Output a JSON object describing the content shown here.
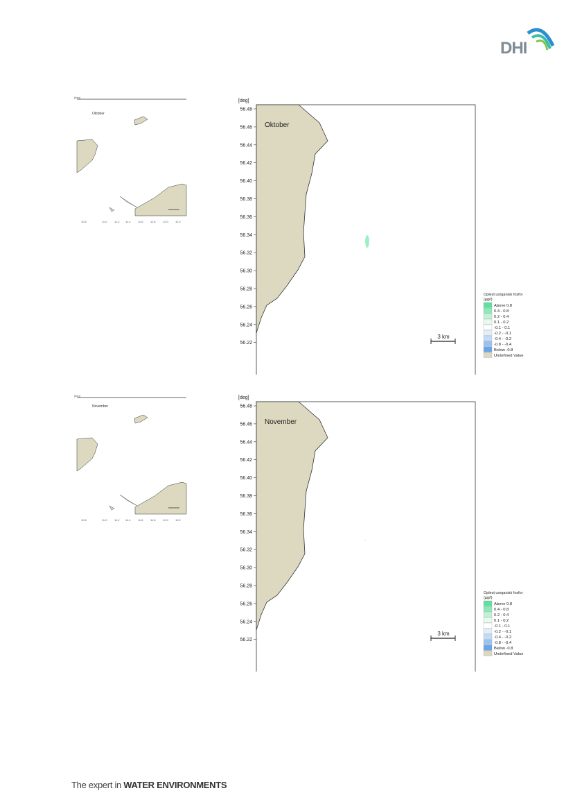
{
  "logo": {
    "text": "DHI"
  },
  "footer": {
    "prefix": "The expert in ",
    "emphasis": "WATER ENVIRONMENTS"
  },
  "axes": {
    "x_unit": "[deg]",
    "y_unit": "[deg]",
    "x_ticks": [
      "10.85",
      "10.90",
      "10.95",
      "11.00",
      "11.05",
      "11.10",
      "11.15",
      "11.20",
      "11.25"
    ],
    "y_ticks": [
      "56.48",
      "56.46",
      "56.44",
      "56.42",
      "56.40",
      "56.38",
      "56.36",
      "56.34",
      "56.32",
      "56.30",
      "56.28",
      "56.26",
      "56.24",
      "56.22"
    ]
  },
  "legend": {
    "title_line1": "Oplest uorganisk fosfor",
    "title_line2": "(µg/l)",
    "items": [
      {
        "label": "Above  0.8",
        "color": "#5fe0a0"
      },
      {
        "label": "0.4 -  0.8",
        "color": "#8aeab8"
      },
      {
        "label": "0.2 -  0.4",
        "color": "#bff2d6"
      },
      {
        "label": "0.1 -  0.2",
        "color": "#e6faef"
      },
      {
        "label": "-0.1 -  0.1",
        "color": "#ffffff"
      },
      {
        "label": "-0.2 - -0.1",
        "color": "#e3eefb"
      },
      {
        "label": "-0.4 - -0.2",
        "color": "#c3dbf6"
      },
      {
        "label": "-0.8 - -0.4",
        "color": "#9cc3f0"
      },
      {
        "label": "Below -0.8",
        "color": "#6aa5ea"
      },
      {
        "label": "Undefined Value",
        "color": "#dcd9c0"
      }
    ]
  },
  "scale_bar": "3 km",
  "maps": [
    {
      "month": "Oktober"
    },
    {
      "month": "November"
    }
  ],
  "colors": {
    "land": "#dcd9c0",
    "land_stroke": "#333333",
    "plume": "#8aeab8"
  }
}
